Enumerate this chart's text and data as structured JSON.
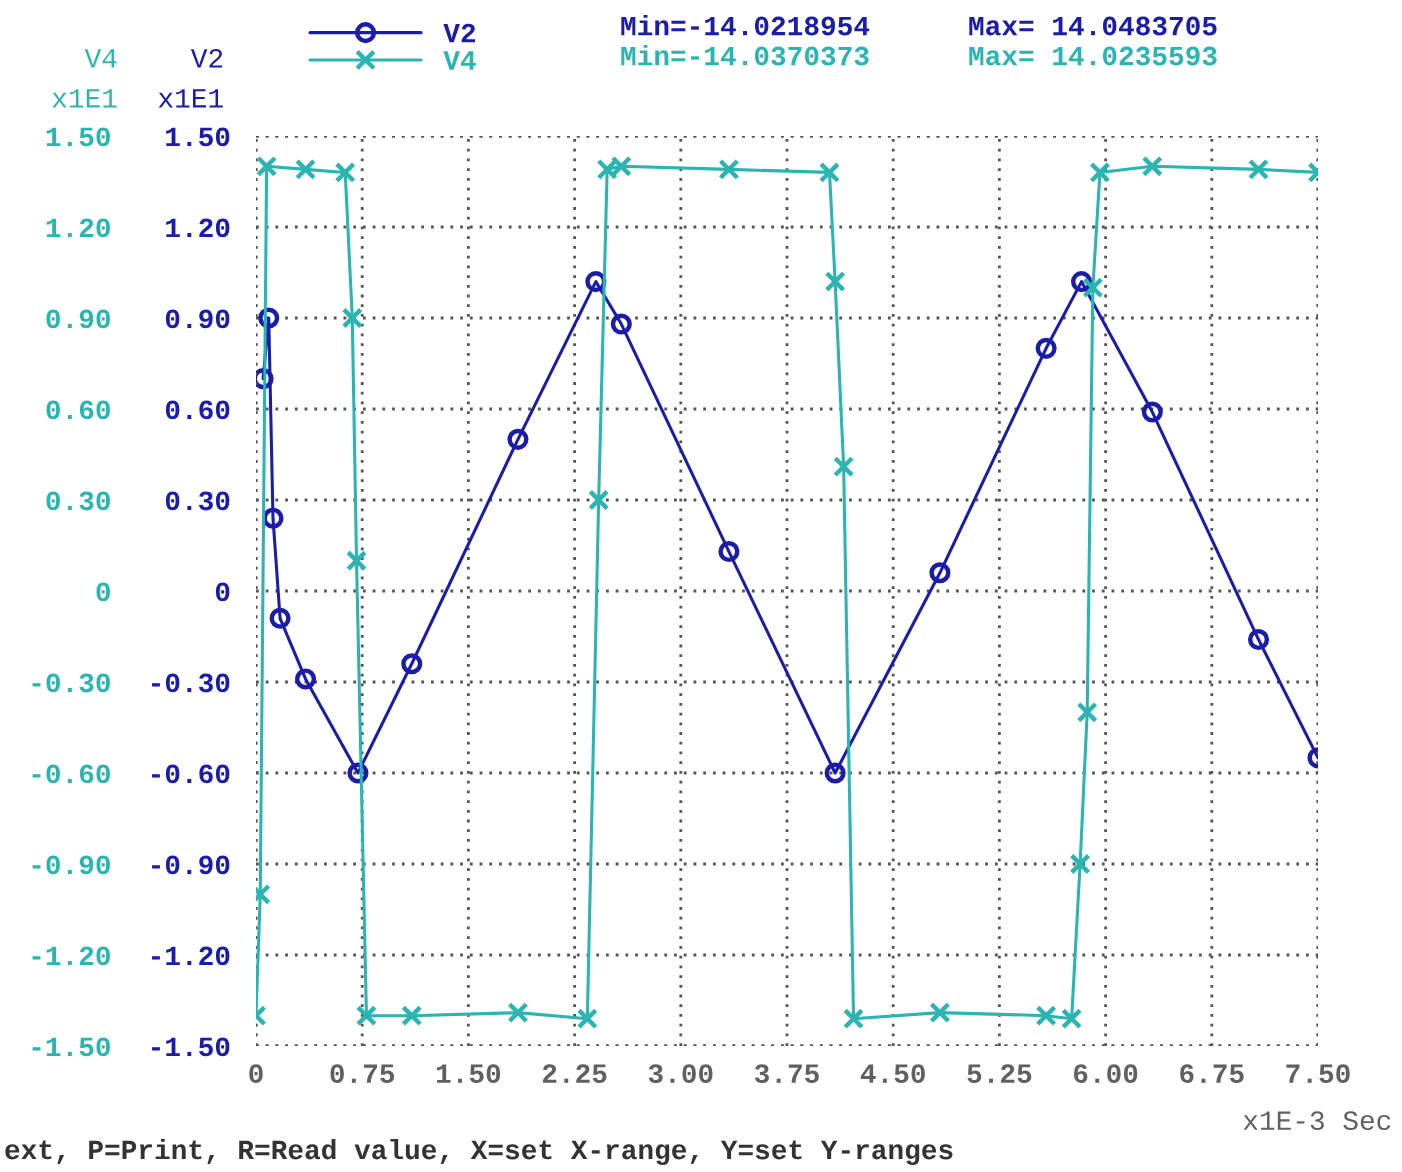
{
  "chart_data": {
    "type": "line",
    "xlabel": "x1E-3 Sec",
    "ylabel": "V4\nx1E1",
    "y2label": "V2\nx1E1",
    "xlim": [
      0,
      7.5
    ],
    "xticks": [
      0,
      {
        "value": 0.75,
        "label": "0.75"
      },
      {
        "value": 1.5,
        "label": "1.50"
      },
      {
        "value": 2.25,
        "label": "2.25"
      },
      {
        "value": 3.0,
        "label": "3.00"
      },
      {
        "value": 3.75,
        "label": "3.75"
      },
      {
        "value": 4.5,
        "label": "4.50"
      },
      {
        "value": 5.25,
        "label": "5.25"
      },
      {
        "value": 6.0,
        "label": "6.00"
      },
      {
        "value": 6.75,
        "label": "6.75"
      },
      {
        "value": 7.5,
        "label": "7.50"
      }
    ],
    "ylim": [
      -1.5,
      1.5
    ],
    "yticks": [
      {
        "value": -1.5,
        "label": "-1.50"
      },
      {
        "value": -1.2,
        "label": "-1.20"
      },
      {
        "value": -0.9,
        "label": "-0.90"
      },
      {
        "value": -0.6,
        "label": "-0.60"
      },
      {
        "value": -0.3,
        "label": "-0.30"
      },
      0,
      {
        "value": 0.3,
        "label": "0.30"
      },
      {
        "value": 0.6,
        "label": "0.60"
      },
      {
        "value": 0.9,
        "label": "0.90"
      },
      {
        "value": 1.2,
        "label": "1.20"
      },
      {
        "value": 1.5,
        "label": "1.50"
      }
    ],
    "y2lim": [
      -1.5,
      1.5
    ],
    "y2ticks": [
      {
        "value": -1.5,
        "label": "-1.50"
      },
      {
        "value": -1.2,
        "label": "-1.20"
      },
      {
        "value": -0.9,
        "label": "-0.90"
      },
      {
        "value": -0.6,
        "label": "-0.60"
      },
      {
        "value": -0.3,
        "label": "-0.30"
      },
      0,
      {
        "value": 0.3,
        "label": "0.30"
      },
      {
        "value": 0.6,
        "label": "0.60"
      },
      {
        "value": 0.9,
        "label": "0.90"
      },
      {
        "value": 1.2,
        "label": "1.20"
      },
      {
        "value": 1.5,
        "label": "1.50"
      }
    ],
    "grid": true,
    "legend": "top left",
    "series": [
      {
        "name": "V2",
        "color": "#1c1caa",
        "marker": "circle",
        "axis": "y2",
        "x": [
          0.05,
          0.09,
          0.12,
          0.17,
          0.35,
          0.72,
          1.1,
          1.85,
          2.4,
          2.58,
          3.34,
          4.09,
          4.83,
          5.58,
          5.83,
          6.33,
          7.08,
          7.5
        ],
        "values": [
          0.7,
          0.9,
          0.24,
          -0.09,
          -0.29,
          -0.6,
          -0.24,
          0.5,
          1.02,
          0.88,
          0.13,
          -0.6,
          0.06,
          0.8,
          1.02,
          0.59,
          -0.16,
          -0.55
        ]
      },
      {
        "name": "V4",
        "color": "#2ab5b0",
        "marker": "cross",
        "x": [
          0,
          0.03,
          0.075,
          0.35,
          0.63,
          0.68,
          0.71,
          0.78,
          1.1,
          1.85,
          2.34,
          2.42,
          2.48,
          2.58,
          3.34,
          4.05,
          4.09,
          4.15,
          4.22,
          4.83,
          5.58,
          5.76,
          5.82,
          5.87,
          5.91,
          5.96,
          6.33,
          7.08,
          7.5
        ],
        "values": [
          -1.4,
          -1.0,
          1.4,
          1.39,
          1.38,
          0.9,
          0.1,
          -1.4,
          -1.4,
          -1.39,
          -1.41,
          0.3,
          1.39,
          1.4,
          1.39,
          1.38,
          1.02,
          0.41,
          -1.41,
          -1.39,
          -1.4,
          -1.41,
          -0.9,
          -0.4,
          1.0,
          1.38,
          1.4,
          1.39,
          1.38
        ]
      }
    ],
    "annotations": [
      "Min=-14.0218954",
      "Max= 14.0483705",
      "Min=-14.0370373",
      "Max= 14.0235593",
      "ext, P=Print, R=Read value, X=set X-range, Y=set Y-ranges"
    ]
  }
}
